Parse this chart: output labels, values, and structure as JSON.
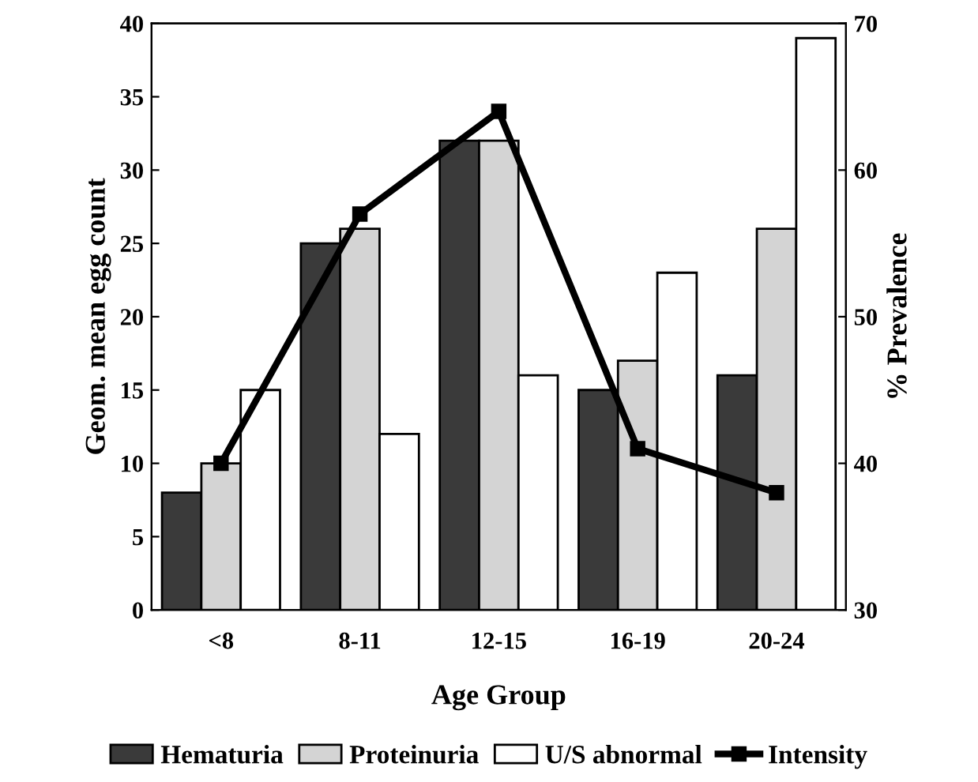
{
  "chart_data": {
    "type": "bar",
    "xlabel": "Age Group",
    "ylabel": "Geom. mean egg count",
    "y2label": "% Prevalence",
    "categories": [
      "<8",
      "8-11",
      "12-15",
      "16-19",
      "20-24"
    ],
    "series": [
      {
        "name": "Hematuria",
        "color": "#3a3a3a",
        "axis": "y2",
        "values": [
          38,
          55,
          62,
          45,
          46
        ]
      },
      {
        "name": "Proteinuria",
        "color": "#d4d4d4",
        "axis": "y2",
        "values": [
          40,
          56,
          62,
          47,
          56
        ]
      },
      {
        "name": "U/S abnormal",
        "color": "#ffffff",
        "axis": "y2",
        "values": [
          45,
          42,
          46,
          53,
          69
        ]
      },
      {
        "name": "Intensity",
        "type": "line",
        "color": "#000000",
        "axis": "y",
        "marker": "square",
        "values": [
          10,
          27,
          34,
          11,
          8
        ]
      }
    ],
    "ylim": [
      0,
      40
    ],
    "yticks": [
      0,
      5,
      10,
      15,
      20,
      25,
      30,
      35,
      40
    ],
    "y2lim": [
      30,
      70
    ],
    "y2ticks": [
      30,
      40,
      50,
      60,
      70
    ],
    "grid": false,
    "legend": "bottom"
  }
}
